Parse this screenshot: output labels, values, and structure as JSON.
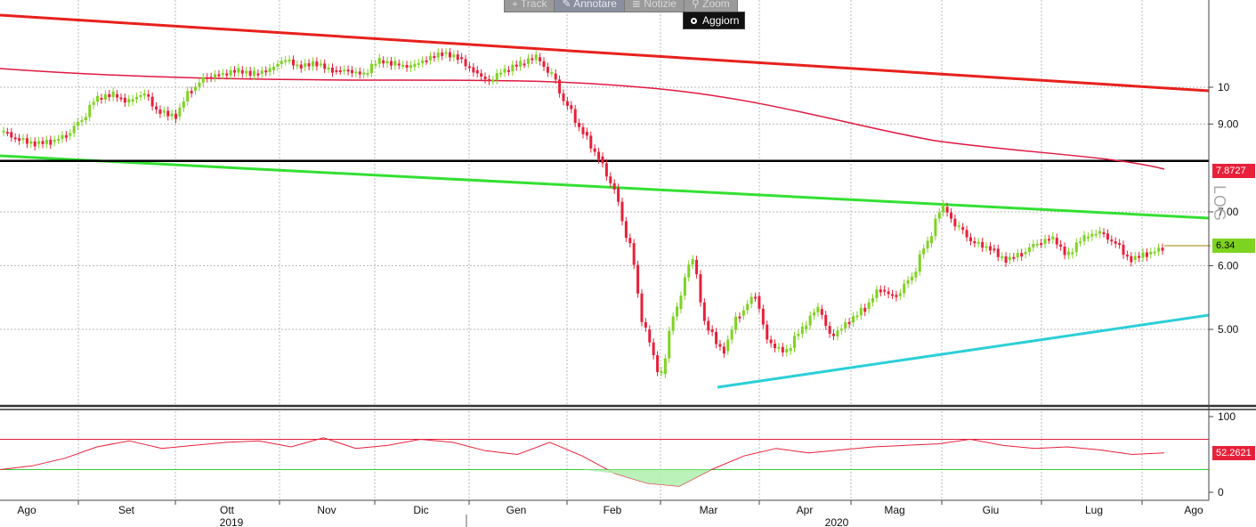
{
  "toolbar": {
    "buttons": [
      {
        "label": "Track",
        "icon": "crosshair-icon"
      },
      {
        "label": "Annotare",
        "icon": "pencil-icon"
      },
      {
        "label": "Notizie",
        "icon": "news-icon"
      },
      {
        "label": "Zoom",
        "icon": "magnifier-icon"
      }
    ],
    "refresh_label": "Aggiorn"
  },
  "scale_label": "LOG",
  "price_tags": {
    "moving_average": "7.8727",
    "last_price": "6.34",
    "rsi": "52.2621"
  },
  "colors": {
    "up_candle": "#7ed321",
    "down_candle": "#e8203a",
    "resistance": "#e8201c",
    "moving_average": "#e01840",
    "support_green": "#33e033",
    "support_cyan": "#2ccfd8",
    "horizontal": "#000000"
  },
  "chart_data": [
    {
      "type": "candlestick",
      "y_scale": "log",
      "y_ticks": [
        "10",
        "9.00",
        "7.00",
        "6.00",
        "5.00"
      ],
      "y_tick_values": [
        10,
        9,
        7,
        6,
        5
      ],
      "x_months": [
        "Ago",
        "Set",
        "Ott",
        "Nov",
        "Dic",
        "Gen",
        "Feb",
        "Mar",
        "Apr",
        "Mag",
        "Giu",
        "Lug",
        "Ago"
      ],
      "x_years": [
        "2019",
        "2020"
      ],
      "last_price": 6.34,
      "moving_average_last": 7.8727,
      "horizontal_level": 8.1,
      "close_series": [
        8.8,
        8.6,
        8.5,
        8.55,
        8.7,
        9.1,
        9.7,
        9.8,
        9.6,
        9.8,
        9.3,
        9.2,
        9.9,
        10.3,
        10.4,
        10.5,
        10.4,
        10.5,
        10.8,
        10.6,
        10.7,
        10.5,
        10.5,
        10.4,
        10.8,
        10.7,
        10.6,
        10.8,
        11.0,
        10.9,
        10.5,
        10.2,
        10.5,
        10.7,
        10.9,
        10.4,
        9.5,
        8.8,
        8.2,
        7.5,
        6.4,
        5.0,
        4.4,
        5.3,
        6.1,
        5.0,
        4.7,
        5.2,
        5.5,
        4.8,
        4.7,
        5.0,
        5.3,
        4.9,
        5.1,
        5.3,
        5.6,
        5.5,
        5.8,
        6.4,
        7.1,
        6.7,
        6.4,
        6.3,
        6.1,
        6.2,
        6.4,
        6.5,
        6.2,
        6.5,
        6.6,
        6.4,
        6.1,
        6.2,
        6.3
      ]
    },
    {
      "type": "line",
      "series": [
        {
          "name": "",
          "values": [
            30,
            35,
            45,
            60,
            68,
            58,
            62,
            66,
            68,
            60,
            72,
            58,
            62,
            70,
            66,
            55,
            50,
            66,
            48,
            25,
            12,
            8,
            30,
            48,
            58,
            52,
            56,
            60,
            62,
            64,
            70,
            62,
            58,
            60,
            56,
            50,
            52
          ]
        }
      ],
      "y_ticks": [
        "100",
        "0"
      ],
      "ylim": [
        0,
        100
      ],
      "overbought": 70,
      "oversold": 30
    }
  ]
}
